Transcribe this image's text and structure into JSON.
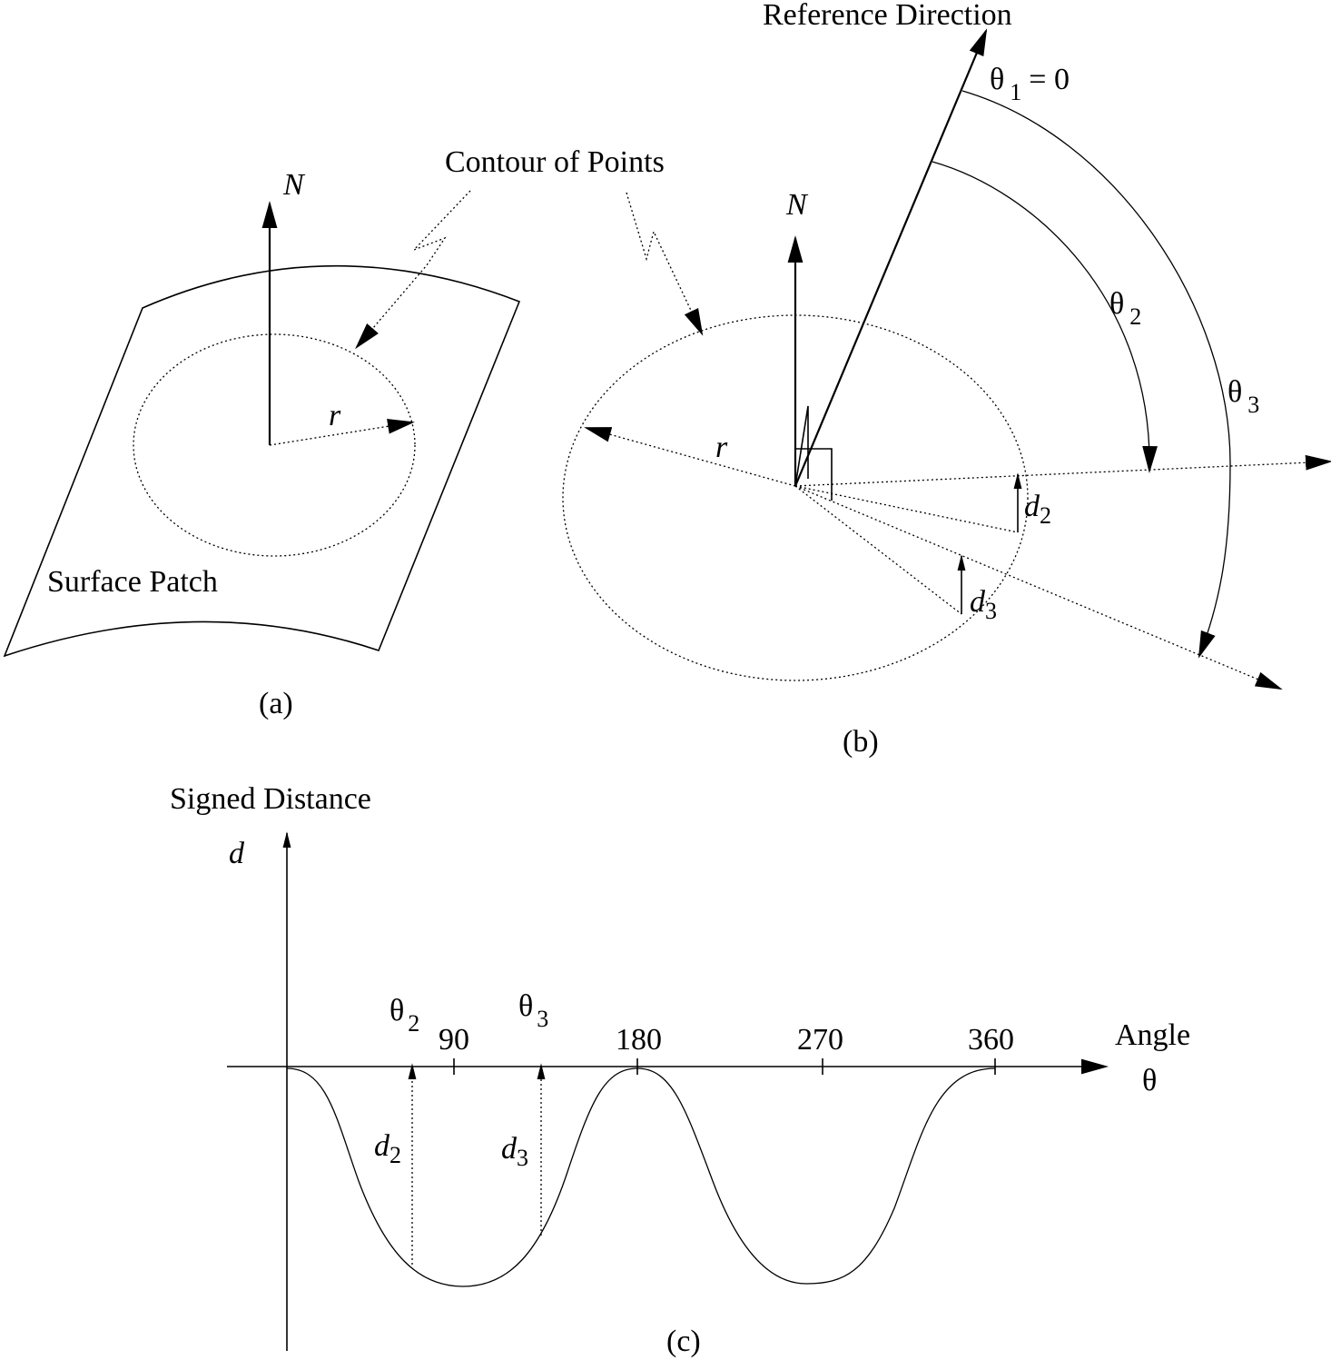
{
  "panel_a": {
    "normal_label": "N",
    "radius_label": "r",
    "surface_label": "Surface Patch",
    "caption": "(a)"
  },
  "contour_label": "Contour of Points",
  "panel_b": {
    "reference_label": "Reference Direction",
    "theta1_symbol": "θ",
    "theta1_sub": "1",
    "theta1_eq": "= 0",
    "theta2_symbol": "θ",
    "theta2_sub": "2",
    "theta3_symbol": "θ",
    "theta3_sub": "3",
    "normal_label": "N",
    "radius_label": "r",
    "d2_symbol": "d",
    "d2_sub": "2",
    "d3_symbol": "d",
    "d3_sub": "3",
    "caption": "(b)"
  },
  "panel_c": {
    "y_title": "Signed Distance",
    "y_symbol": "d",
    "x_title": "Angle",
    "x_symbol": "θ",
    "theta2_symbol": "θ",
    "theta2_sub": "2",
    "theta3_symbol": "θ",
    "theta3_sub": "3",
    "ticks": [
      "90",
      "180",
      "270",
      "360"
    ],
    "d2_symbol": "d",
    "d2_sub": "2",
    "d3_symbol": "d",
    "d3_sub": "3",
    "caption": "(c)"
  }
}
